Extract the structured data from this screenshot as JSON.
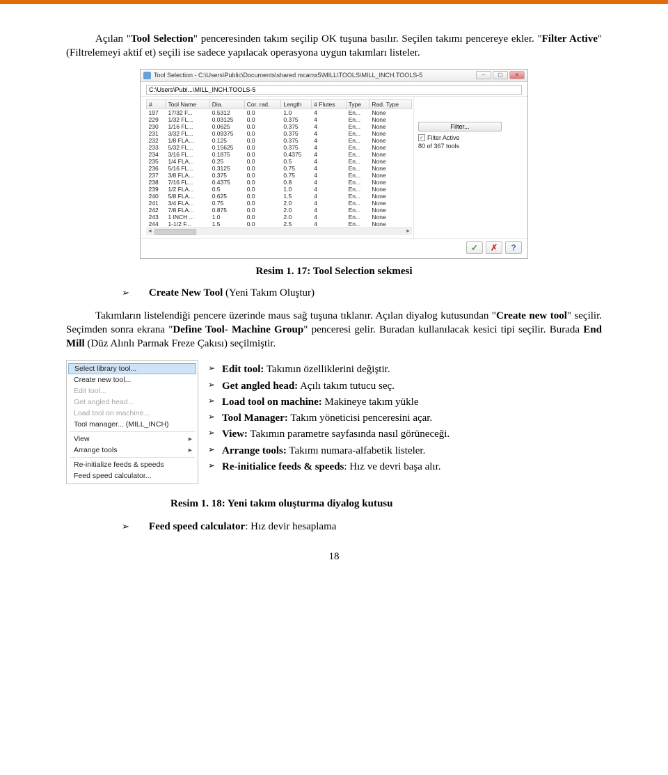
{
  "para1_pre": "Açılan \"",
  "para1_b1": "Tool Selection",
  "para1_mid1": "\" penceresinden takım seçilip OK tuşuna basılır. Seçilen takımı pencereye ekler. \"",
  "para1_b2": "Filter Active",
  "para1_post": "\" (Filtrelemeyi aktif et) seçili ise sadece yapılacak operasyona uygun takımları listeler.",
  "shot1": {
    "title": "Tool Selection - C:\\Users\\Public\\Documents\\shared mcamx5\\MILL\\TOOLS\\MILL_INCH.TOOLS-5",
    "path": "C:\\Users\\Publ...\\MILL_INCH.TOOLS-5",
    "columns": [
      "#",
      "Tool Name",
      "Dia.",
      "Cor. rad.",
      "Length",
      "# Flutes",
      "Type",
      "Rad. Type"
    ],
    "rows": [
      [
        "197",
        "17/32 F...",
        "0.5312",
        "0.0",
        "1.0",
        "4",
        "En...",
        "None"
      ],
      [
        "229",
        "1/32 FL...",
        "0.03125",
        "0.0",
        "0.375",
        "4",
        "En...",
        "None"
      ],
      [
        "230",
        "1/16 FL...",
        "0.0625",
        "0.0",
        "0.375",
        "4",
        "En...",
        "None"
      ],
      [
        "231",
        "3/32 FL...",
        "0.09375",
        "0.0",
        "0.375",
        "4",
        "En...",
        "None"
      ],
      [
        "232",
        "1/8 FLA...",
        "0.125",
        "0.0",
        "0.375",
        "4",
        "En...",
        "None"
      ],
      [
        "233",
        "5/32 FL...",
        "0.15625",
        "0.0",
        "0.375",
        "4",
        "En...",
        "None"
      ],
      [
        "234",
        "3/16 FL...",
        "0.1875",
        "0.0",
        "0.4375",
        "4",
        "En...",
        "None"
      ],
      [
        "235",
        "1/4 FLA...",
        "0.25",
        "0.0",
        "0.5",
        "4",
        "En...",
        "None"
      ],
      [
        "236",
        "5/16 FL...",
        "0.3125",
        "0.0",
        "0.75",
        "4",
        "En...",
        "None"
      ],
      [
        "237",
        "3/8 FLA...",
        "0.375",
        "0.0",
        "0.75",
        "4",
        "En...",
        "None"
      ],
      [
        "238",
        "7/16 FL...",
        "0.4375",
        "0.0",
        "0.8",
        "4",
        "En...",
        "None"
      ],
      [
        "239",
        "1/2 FLA...",
        "0.5",
        "0.0",
        "1.0",
        "4",
        "En...",
        "None"
      ],
      [
        "240",
        "5/8 FLA...",
        "0.625",
        "0.0",
        "1.5",
        "4",
        "En...",
        "None"
      ],
      [
        "241",
        "3/4 FLA...",
        "0.75",
        "0.0",
        "2.0",
        "4",
        "En...",
        "None"
      ],
      [
        "242",
        "7/8 FLA...",
        "0.875",
        "0.0",
        "2.0",
        "4",
        "En...",
        "None"
      ],
      [
        "243",
        "1 INCH ...",
        "1.0",
        "0.0",
        "2.0",
        "4",
        "En...",
        "None"
      ],
      [
        "244",
        "1-1/2 F...",
        "1.5",
        "0.0",
        "2.5",
        "4",
        "En...",
        "None"
      ]
    ],
    "filter_label": "Filter...",
    "filter_active_label": "Filter Active",
    "filter_active_checked": true,
    "tool_count": "80 of 367 tools"
  },
  "caption1": "Resim 1. 17: Tool Selection sekmesi",
  "bullet_create_b": "Create New Tool",
  "bullet_create_rest": " (Yeni Takım Oluştur)",
  "para2_pre": "Takımların listelendiği pencere üzerinde maus sağ tuşuna tıklanır. Açılan diyalog kutusundan \"",
  "para2_b1": "Create new tool",
  "para2_mid1": "\" seçilir. Seçimden sonra ekrana \"",
  "para2_b2": "Define Tool- Machine Group",
  "para2_mid2": "\" penceresi gelir. Buradan kullanılacak kesici tipi seçilir. Burada ",
  "para2_b3": "End Mill",
  "para2_post": " (Düz Alınlı Parmak Freze Çakısı) seçilmiştir.",
  "menu": {
    "items": [
      {
        "label": "Select library tool...",
        "selected": true
      },
      {
        "label": "Create new tool..."
      },
      {
        "label": "Edit tool...",
        "disabled": true
      },
      {
        "label": "Get angled head...",
        "disabled": true
      },
      {
        "label": "Load tool on machine...",
        "disabled": true
      },
      {
        "label": "Tool manager...  (MILL_INCH)"
      },
      {
        "sep": true
      },
      {
        "label": "View",
        "arrow": true
      },
      {
        "label": "Arrange tools",
        "arrow": true
      },
      {
        "sep": true
      },
      {
        "label": "Re-initialize feeds & speeds"
      },
      {
        "label": "Feed speed calculator..."
      }
    ]
  },
  "bullets2": [
    {
      "b": "Edit tool:",
      "t": " Takımın özelliklerini değiştir."
    },
    {
      "b": "Get angled head:",
      "t": " Açılı takım tutucu seç."
    },
    {
      "b": "Load tool on machine:",
      "t": " Makineye takım yükle"
    },
    {
      "b": "Tool Manager:",
      "t": " Takım yöneticisi penceresini açar."
    },
    {
      "b": "View:",
      "t": " Takımın parametre sayfasında nasıl görüneceği."
    },
    {
      "b": "Arrange tools:",
      "t": " Takımı numara-alfabetik listeler."
    },
    {
      "b": "Re-initialice feeds & speeds",
      "t": ": Hız ve devri başa alır."
    }
  ],
  "caption2": "Resim 1. 18: Yeni takım oluşturma diyalog kutusu",
  "bullet_feed_b": "Feed speed calculator",
  "bullet_feed_rest": ": Hız devir hesaplama",
  "pagenum": "18"
}
